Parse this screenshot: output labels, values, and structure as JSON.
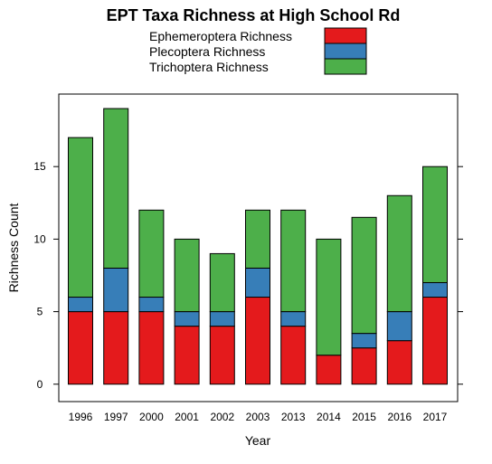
{
  "chart_data": {
    "type": "bar",
    "stacked": true,
    "title": "EPT Taxa Richness at High School Rd",
    "xlabel": "Year",
    "ylabel": "Richness Count",
    "ylim": [
      -1.2,
      20
    ],
    "yticks": [
      0,
      5,
      10,
      15
    ],
    "categories": [
      "1996",
      "1997",
      "2000",
      "2001",
      "2002",
      "2003",
      "2013",
      "2014",
      "2015",
      "2016",
      "2017"
    ],
    "series": [
      {
        "name": "Ephemeroptera Richness",
        "color": "#e41a1c",
        "values": [
          5,
          5,
          5,
          4,
          4,
          6,
          4,
          2,
          2.5,
          3,
          6
        ]
      },
      {
        "name": "Plecoptera Richness",
        "color": "#377eb8",
        "values": [
          1,
          3,
          1,
          1,
          1,
          2,
          1,
          0,
          1,
          2,
          1
        ]
      },
      {
        "name": "Trichoptera Richness",
        "color": "#4daf4a",
        "values": [
          11,
          11,
          6,
          5,
          4,
          4,
          7,
          8,
          8,
          8,
          8
        ]
      }
    ],
    "grid": false,
    "legend_position": "top"
  }
}
